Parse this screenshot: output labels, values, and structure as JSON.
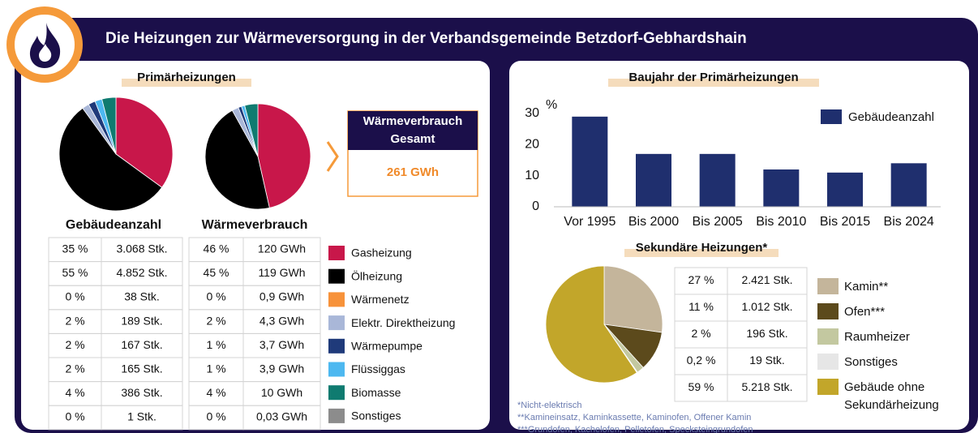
{
  "title": "Die Heizungen zur Wärmeversorgung in der Verbandsgemeinde Betzdorf-Gebhardshain",
  "primary_title": "Primärheizungen",
  "total": {
    "title": "Wärmeverbrauch Gesamt",
    "value": "261 GWh"
  },
  "footnotes": [
    "*Nicht-elektrisch",
    "**Kamineinsatz, Kaminkassette, Kaminofen, Offener Kamin",
    "***Grundofen, Kachelofen, Pelletofen, Specksteingrundofen"
  ],
  "chart_data": [
    {
      "type": "pie",
      "title": "Gebäudeanzahl",
      "categories": [
        "Gasheizung",
        "Ölheizung",
        "Wärmenetz",
        "Elektr. Direktheizung",
        "Wärmepumpe",
        "Flüssiggas",
        "Biomasse",
        "Sonstiges"
      ],
      "colors": [
        "#c8174a",
        "#000000",
        "#f7923a",
        "#a9b7d8",
        "#1f3a7a",
        "#4db8f0",
        "#0f7b70",
        "#8c8c8c"
      ],
      "values": [
        35,
        55,
        0,
        2,
        2,
        2,
        4,
        0
      ],
      "value_labels": [
        "35 %",
        "55 %",
        "0 %",
        "2 %",
        "2 %",
        "2 %",
        "4 %",
        "0 %"
      ],
      "counts": [
        "3.068 Stk.",
        "4.852 Stk.",
        "38 Stk.",
        "189 Stk.",
        "167 Stk.",
        "165 Stk.",
        "386 Stk.",
        "1 Stk."
      ]
    },
    {
      "type": "pie",
      "title": "Wärmeverbrauch",
      "values": [
        46,
        45,
        0,
        2,
        1,
        1,
        4,
        0
      ],
      "value_labels": [
        "46 %",
        "45 %",
        "0 %",
        "2 %",
        "1 %",
        "1 %",
        "4 %",
        "0 %"
      ],
      "counts": [
        "120 GWh",
        "119 GWh",
        "0,9 GWh",
        "4,3 GWh",
        "3,7 GWh",
        "3,9 GWh",
        "10 GWh",
        "0,03 GWh"
      ]
    },
    {
      "type": "bar",
      "title": "Baujahr der Primärheizungen",
      "y_label": "%",
      "categories": [
        "Vor 1995",
        "Bis 2000",
        "Bis 2005",
        "Bis 2010",
        "Bis 2015",
        "Bis 2024"
      ],
      "series": [
        {
          "name": "Gebäudeanzahl",
          "color": "#1f2f6e",
          "values": [
            29,
            17,
            17,
            12,
            11,
            14
          ]
        }
      ],
      "ylim": [
        0,
        30
      ],
      "yticks": [
        0,
        10,
        20,
        30
      ],
      "grid": false,
      "legend": "upper right"
    },
    {
      "type": "pie",
      "title": "Sekundäre Heizungen*",
      "categories": [
        "Kamin**",
        "Ofen***",
        "Raumheizer",
        "Sonstiges",
        "Gebäude ohne Sekundärheizung"
      ],
      "colors": [
        "#c4b59b",
        "#5c4a1c",
        "#c3c8a0",
        "#e6e6e6",
        "#c2a62a"
      ],
      "values": [
        27,
        11,
        2,
        0.2,
        59
      ],
      "value_labels": [
        "27 %",
        "11 %",
        "2 %",
        "0,2 %",
        "59 %"
      ],
      "counts": [
        "2.421 Stk.",
        "1.012 Stk.",
        "196 Stk.",
        "19 Stk.",
        "5.218 Stk."
      ]
    }
  ]
}
